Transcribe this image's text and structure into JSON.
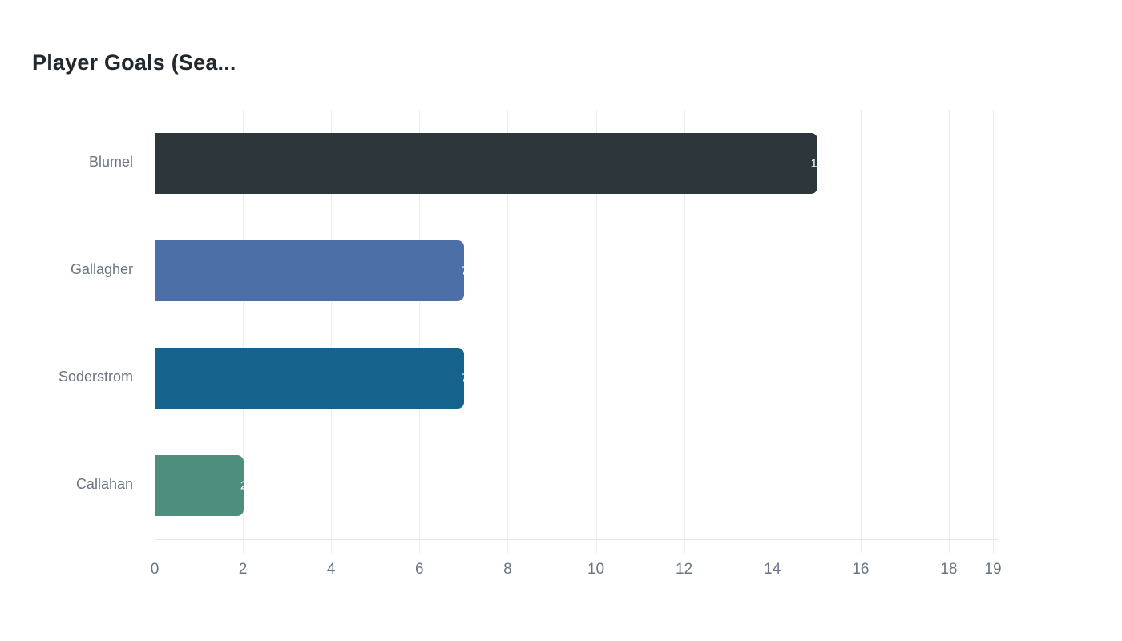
{
  "chart_data": {
    "type": "bar",
    "orientation": "horizontal",
    "title": "Player Goals (Sea...",
    "categories": [
      "Blumel",
      "Gallagher",
      "Soderstrom",
      "Callahan"
    ],
    "values": [
      15,
      7,
      7,
      2
    ],
    "value_labels": [
      "15",
      "7",
      "7",
      "2"
    ],
    "bar_colors": [
      "#2d363a",
      "#4c6fa8",
      "#15638d",
      "#4d8f7c"
    ],
    "xlabel": "",
    "ylabel": "",
    "xlim": [
      0,
      19
    ],
    "xticks": [
      0,
      2,
      4,
      6,
      8,
      10,
      12,
      14,
      16,
      18,
      19
    ],
    "grid": "vertical",
    "legend": "none",
    "colors": {
      "background": "#ffffff",
      "title_text": "#21282e",
      "axis_label_text": "#6b7580",
      "gridline": "#ededed",
      "zero_axis_line": "#c7ccd0",
      "baseline": "#e2e5e7",
      "value_label_text": "#ffffff"
    }
  }
}
